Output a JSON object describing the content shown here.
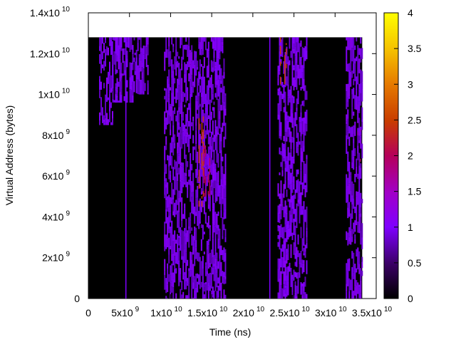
{
  "chart_data": {
    "type": "heatmap",
    "title": "",
    "xlabel": "Time (ns)",
    "ylabel": "Virtual Address (bytes)",
    "xlim": [
      0,
      35000000000
    ],
    "ylim": [
      0,
      14000000000
    ],
    "data_extent": {
      "x": [
        0,
        33300000000
      ],
      "y": [
        0,
        12800000000
      ]
    },
    "background_value": 0,
    "x_ticks": [
      {
        "value": 0,
        "mantissa": "0",
        "exponent": ""
      },
      {
        "value": 5000000000,
        "mantissa": "5x10",
        "exponent": "9"
      },
      {
        "value": 10000000000,
        "mantissa": "1x10",
        "exponent": "10"
      },
      {
        "value": 15000000000,
        "mantissa": "1.5x10",
        "exponent": "10"
      },
      {
        "value": 20000000000,
        "mantissa": "2x10",
        "exponent": "10"
      },
      {
        "value": 25000000000,
        "mantissa": "2.5x10",
        "exponent": "10"
      },
      {
        "value": 30000000000,
        "mantissa": "3x10",
        "exponent": "10"
      },
      {
        "value": 35000000000,
        "mantissa": "3.5x10",
        "exponent": "10"
      }
    ],
    "y_ticks": [
      {
        "value": 0,
        "mantissa": "0",
        "exponent": ""
      },
      {
        "value": 2000000000,
        "mantissa": "2x10",
        "exponent": "9"
      },
      {
        "value": 4000000000,
        "mantissa": "4x10",
        "exponent": "9"
      },
      {
        "value": 6000000000,
        "mantissa": "6x10",
        "exponent": "9"
      },
      {
        "value": 8000000000,
        "mantissa": "8x10",
        "exponent": "9"
      },
      {
        "value": 10000000000,
        "mantissa": "1x10",
        "exponent": "10"
      },
      {
        "value": 12000000000,
        "mantissa": "1.2x10",
        "exponent": "10"
      },
      {
        "value": 14000000000,
        "mantissa": "1.4x10",
        "exponent": "10"
      }
    ],
    "colorbar": {
      "range": [
        0,
        4
      ],
      "ticks": [
        {
          "value": 0,
          "label": "0"
        },
        {
          "value": 0.5,
          "label": "0.5"
        },
        {
          "value": 1,
          "label": "1"
        },
        {
          "value": 1.5,
          "label": "1.5"
        },
        {
          "value": 2,
          "label": "2"
        },
        {
          "value": 2.5,
          "label": "2.5"
        },
        {
          "value": 3,
          "label": "3"
        },
        {
          "value": 3.5,
          "label": "3.5"
        },
        {
          "value": 4,
          "label": "4"
        }
      ]
    },
    "activity_bands": [
      {
        "x_range": [
          1300000000,
          2900000000
        ],
        "y_range": [
          8500000000,
          12800000000
        ],
        "value": 1
      },
      {
        "x_range": [
          2900000000,
          5600000000
        ],
        "y_range": [
          9600000000,
          12800000000
        ],
        "value": 1
      },
      {
        "x_range": [
          5600000000,
          7200000000
        ],
        "y_range": [
          10000000000,
          12800000000
        ],
        "value": 1
      },
      {
        "x_range": [
          9200000000,
          13500000000
        ],
        "y_range": [
          0,
          12800000000
        ],
        "value": 1
      },
      {
        "x_range": [
          13500000000,
          15200000000
        ],
        "y_range": [
          0,
          12800000000
        ],
        "value": 1
      },
      {
        "x_range": [
          15200000000,
          16700000000
        ],
        "y_range": [
          0,
          12800000000
        ],
        "value": 1
      },
      {
        "x_range": [
          23000000000,
          26500000000
        ],
        "y_range": [
          0,
          12800000000
        ],
        "value": 1
      },
      {
        "x_range": [
          31300000000,
          33300000000
        ],
        "y_range": [
          0,
          12800000000
        ],
        "value": 1
      }
    ],
    "vertical_lines": [
      {
        "x": 4500000000,
        "y_range": [
          0,
          12800000000
        ],
        "value": 1
      },
      {
        "x": 22000000000,
        "y_range": [
          0,
          12800000000
        ],
        "value": 1
      }
    ],
    "hotspots": [
      {
        "x_range": [
          13400000000,
          14000000000
        ],
        "y_range": [
          4500000000,
          9000000000
        ],
        "value": 2.5
      },
      {
        "x_range": [
          14000000000,
          14800000000
        ],
        "y_range": [
          5000000000,
          7500000000
        ],
        "value": 2
      },
      {
        "x_range": [
          23300000000,
          24000000000
        ],
        "y_range": [
          10500000000,
          12800000000
        ],
        "value": 2.5
      },
      {
        "x_range": [
          33000000000,
          33300000000
        ],
        "y_range": [
          5500000000,
          7000000000
        ],
        "value": 2
      },
      {
        "x_range": [
          32700000000,
          33100000000
        ],
        "y_range": [
          8000000000,
          8500000000
        ],
        "value": 1.5
      }
    ]
  }
}
